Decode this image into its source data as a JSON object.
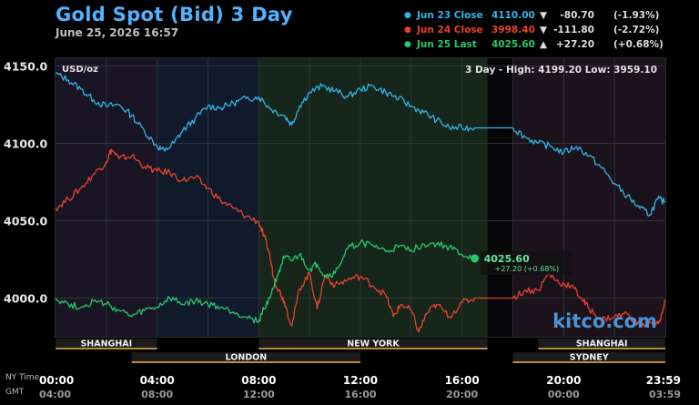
{
  "chart_data": {
    "type": "line",
    "title": "Gold Spot (Bid) 3 Day",
    "subtitle": "June 25, 2026 16:57",
    "unit_label": "USD/oz",
    "stats_label": "3 Day - High: 4199.20  Low: 3959.10",
    "ylim": [
      3975,
      4155
    ],
    "yticks": [
      "4150.0",
      "4100.0",
      "4050.0",
      "4000.0"
    ],
    "ytick_values": [
      4150,
      4100,
      4050,
      4000
    ],
    "x_range_hours": [
      0,
      24
    ],
    "xticks_ny": [
      "00:00",
      "04:00",
      "08:00",
      "12:00",
      "16:00",
      "20:00",
      "23:59"
    ],
    "xticks_gmt": [
      "04:00",
      "08:00",
      "12:00",
      "16:00",
      "20:00",
      "00:00",
      "03:59"
    ],
    "tz_labels": {
      "ny": "NY Time",
      "gmt": "GMT"
    },
    "sessions": [
      {
        "name": "SHANGHAI",
        "start": 0,
        "end": 4
      },
      {
        "name": "NEW YORK",
        "start": 8,
        "end": 17
      },
      {
        "name": "SHANGHAI",
        "start": 19,
        "end": 24
      },
      {
        "name": "LONDON",
        "start": 3,
        "end": 12
      },
      {
        "name": "SYDNEY",
        "start": 18,
        "end": 24
      }
    ],
    "series": [
      {
        "name": "Jun 23 Close",
        "color": "#2fb5e8",
        "value": "4110.00",
        "arrow": "▼",
        "change": "-80.70",
        "percent": "(-1.93%)",
        "points": [
          [
            0,
            4145
          ],
          [
            0.5,
            4141
          ],
          [
            1,
            4135
          ],
          [
            1.5,
            4128
          ],
          [
            2,
            4124
          ],
          [
            2.5,
            4125
          ],
          [
            3,
            4118
          ],
          [
            3.5,
            4108
          ],
          [
            4,
            4098
          ],
          [
            4.3,
            4095
          ],
          [
            4.7,
            4101
          ],
          [
            5,
            4108
          ],
          [
            5.5,
            4116
          ],
          [
            6,
            4124
          ],
          [
            6.5,
            4123
          ],
          [
            7,
            4126
          ],
          [
            7.5,
            4129
          ],
          [
            8,
            4130
          ],
          [
            8.5,
            4122
          ],
          [
            9,
            4118
          ],
          [
            9.3,
            4112
          ],
          [
            9.6,
            4124
          ],
          [
            10,
            4133
          ],
          [
            10.5,
            4137
          ],
          [
            11,
            4134
          ],
          [
            11.5,
            4130
          ],
          [
            12,
            4135
          ],
          [
            12.5,
            4137
          ],
          [
            13,
            4133
          ],
          [
            13.5,
            4129
          ],
          [
            14,
            4124
          ],
          [
            14.5,
            4120
          ],
          [
            15,
            4115
          ],
          [
            15.5,
            4110
          ],
          [
            16,
            4110
          ],
          [
            16.5,
            4110
          ],
          [
            17,
            4110
          ],
          [
            18,
            4110
          ],
          [
            18.5,
            4104
          ],
          [
            19,
            4100
          ],
          [
            19.5,
            4098
          ],
          [
            20,
            4094
          ],
          [
            20.5,
            4098
          ],
          [
            21,
            4092
          ],
          [
            21.5,
            4084
          ],
          [
            22,
            4074
          ],
          [
            22.5,
            4066
          ],
          [
            23,
            4058
          ],
          [
            23.4,
            4054
          ],
          [
            23.7,
            4064
          ],
          [
            24,
            4062
          ]
        ]
      },
      {
        "name": "Jun 24 Close",
        "color": "#e8432c",
        "value": "3998.40",
        "arrow": "▼",
        "change": "-111.80",
        "percent": "(-2.72%)",
        "points": [
          [
            0,
            4058
          ],
          [
            0.5,
            4064
          ],
          [
            1,
            4071
          ],
          [
            1.5,
            4080
          ],
          [
            2,
            4088
          ],
          [
            2.2,
            4096
          ],
          [
            2.5,
            4090
          ],
          [
            3,
            4092
          ],
          [
            3.5,
            4085
          ],
          [
            4,
            4082
          ],
          [
            4.5,
            4081
          ],
          [
            5,
            4076
          ],
          [
            5.5,
            4078
          ],
          [
            6,
            4071
          ],
          [
            6.5,
            4063
          ],
          [
            7,
            4058
          ],
          [
            7.5,
            4053
          ],
          [
            8,
            4049
          ],
          [
            8.2,
            4040
          ],
          [
            8.4,
            4030
          ],
          [
            8.6,
            4012
          ],
          [
            8.8,
            4005
          ],
          [
            9,
            3998
          ],
          [
            9.3,
            3982
          ],
          [
            9.6,
            4006
          ],
          [
            10,
            4016
          ],
          [
            10.3,
            3993
          ],
          [
            10.6,
            4015
          ],
          [
            11,
            4008
          ],
          [
            11.5,
            4012
          ],
          [
            12,
            4014
          ],
          [
            12.5,
            4008
          ],
          [
            13,
            4002
          ],
          [
            13.3,
            3988
          ],
          [
            13.6,
            3996
          ],
          [
            14,
            3992
          ],
          [
            14.3,
            3978
          ],
          [
            14.6,
            3990
          ],
          [
            15,
            3996
          ],
          [
            15.5,
            3988
          ],
          [
            16,
            3997
          ],
          [
            16.5,
            4000
          ],
          [
            17,
            4000
          ],
          [
            18,
            4000
          ],
          [
            18.5,
            4005
          ],
          [
            19,
            4005
          ],
          [
            19.4,
            4016
          ],
          [
            19.8,
            4010
          ],
          [
            20.3,
            4008
          ],
          [
            20.7,
            4000
          ],
          [
            21,
            3993
          ],
          [
            21.5,
            3986
          ],
          [
            22,
            3988
          ],
          [
            22.5,
            3990
          ],
          [
            23,
            3982
          ],
          [
            23.5,
            3984
          ],
          [
            23.8,
            3985
          ],
          [
            24,
            3998
          ]
        ]
      },
      {
        "name": "Jun 25 Last",
        "color": "#23c86c",
        "value": "4025.60",
        "arrow": "▲",
        "change": "+27.20",
        "percent": "(+0.68%)",
        "points": [
          [
            0,
            4000
          ],
          [
            0.5,
            3996
          ],
          [
            1,
            3994
          ],
          [
            1.5,
            3998
          ],
          [
            2,
            3996
          ],
          [
            2.5,
            3992
          ],
          [
            3,
            3988
          ],
          [
            3.5,
            3992
          ],
          [
            4,
            3994
          ],
          [
            4.5,
            4000
          ],
          [
            5,
            3996
          ],
          [
            5.5,
            3998
          ],
          [
            6,
            3996
          ],
          [
            6.5,
            3994
          ],
          [
            7,
            3991
          ],
          [
            7.5,
            3988
          ],
          [
            8,
            3985
          ],
          [
            8.2,
            3993
          ],
          [
            8.5,
            4003
          ],
          [
            8.8,
            4018
          ],
          [
            9,
            4026
          ],
          [
            9.3,
            4024
          ],
          [
            9.6,
            4028
          ],
          [
            10,
            4018
          ],
          [
            10.3,
            4022
          ],
          [
            10.6,
            4014
          ],
          [
            11,
            4016
          ],
          [
            11.5,
            4032
          ],
          [
            12,
            4036
          ],
          [
            12.5,
            4034
          ],
          [
            13,
            4030
          ],
          [
            13.5,
            4033
          ],
          [
            14,
            4031
          ],
          [
            14.5,
            4035
          ],
          [
            15,
            4035
          ],
          [
            15.5,
            4033
          ],
          [
            16,
            4028
          ],
          [
            16.5,
            4025.6
          ]
        ]
      }
    ],
    "last_label": "4025.60",
    "last_change_label": "+27.20 (+0.68%)",
    "watermark": "kitco.com"
  }
}
